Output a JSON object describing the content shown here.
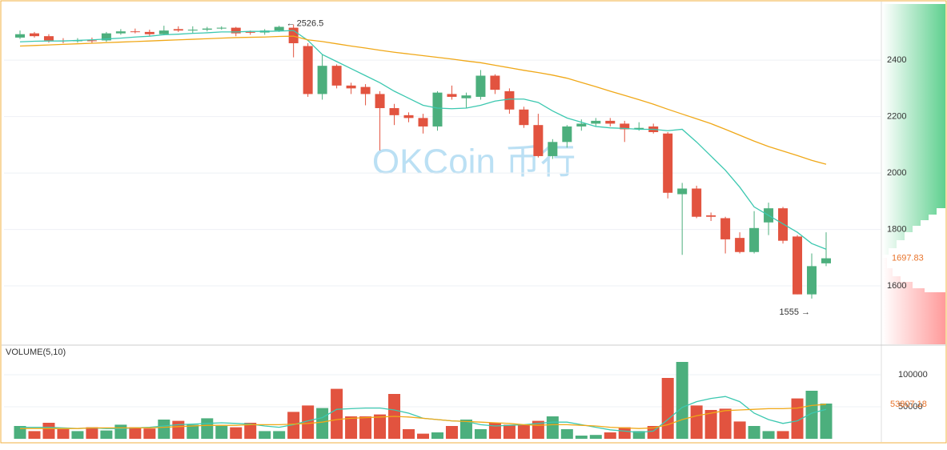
{
  "chart_data": [
    {
      "type": "candlestick",
      "watermark": "OKCoin 币行",
      "ylim": [
        1393,
        2599
      ],
      "yticks": [
        1600,
        1800,
        2000,
        2200,
        2400
      ],
      "grid": true,
      "up_color": "#4caf7d",
      "down_color": "#e2533f",
      "open": [
        2480,
        2495,
        2485,
        2470,
        2468,
        2470,
        2470,
        2495,
        2502,
        2500,
        2492,
        2510,
        2505,
        2508,
        2512,
        2515,
        2500,
        2498,
        2505,
        2515,
        2450,
        2280,
        2380,
        2310,
        2305,
        2280,
        2230,
        2205,
        2195,
        2165,
        2280,
        2265,
        2270,
        2345,
        2290,
        2225,
        2170,
        2060,
        2110,
        2165,
        2175,
        2185,
        2175,
        2155,
        2165,
        2140,
        1925,
        1945,
        1850,
        1840,
        1770,
        1720,
        1825,
        1875,
        1775,
        1570,
        1680
      ],
      "high": [
        2505,
        2500,
        2492,
        2478,
        2478,
        2480,
        2500,
        2510,
        2512,
        2508,
        2522,
        2520,
        2520,
        2518,
        2520,
        2518,
        2505,
        2510,
        2522,
        2526.5,
        2460,
        2420,
        2385,
        2320,
        2315,
        2290,
        2245,
        2215,
        2210,
        2290,
        2310,
        2285,
        2365,
        2350,
        2300,
        2235,
        2210,
        2120,
        2170,
        2190,
        2195,
        2195,
        2185,
        2180,
        2175,
        2145,
        1965,
        1955,
        1860,
        1845,
        1790,
        1865,
        1895,
        1880,
        1780,
        1715,
        1790
      ],
      "low": [
        2475,
        2480,
        2462,
        2460,
        2462,
        2460,
        2465,
        2490,
        2495,
        2485,
        2488,
        2500,
        2495,
        2502,
        2508,
        2485,
        2490,
        2490,
        2500,
        2410,
        2270,
        2260,
        2300,
        2280,
        2240,
        2080,
        2170,
        2180,
        2140,
        2150,
        2260,
        2230,
        2260,
        2280,
        2210,
        2160,
        2055,
        2050,
        2090,
        2150,
        2165,
        2165,
        2110,
        2150,
        2140,
        1910,
        1710,
        1840,
        1830,
        1715,
        1715,
        1715,
        1780,
        1750,
        1570,
        1555,
        1670
      ],
      "close": [
        2492,
        2485,
        2470,
        2468,
        2470,
        2468,
        2495,
        2502,
        2500,
        2492,
        2505,
        2505,
        2508,
        2512,
        2515,
        2495,
        2498,
        2505,
        2518,
        2460,
        2280,
        2380,
        2310,
        2300,
        2280,
        2230,
        2205,
        2195,
        2165,
        2285,
        2270,
        2275,
        2345,
        2295,
        2225,
        2170,
        2060,
        2110,
        2165,
        2175,
        2185,
        2175,
        2155,
        2160,
        2145,
        1930,
        1945,
        1845,
        1845,
        1765,
        1720,
        1805,
        1875,
        1760,
        1570,
        1670,
        1697.83
      ],
      "lines": [
        {
          "color": "#3cc8b0",
          "values": [
            2465,
            2467,
            2468,
            2468,
            2470,
            2472,
            2475,
            2478,
            2482,
            2485,
            2490,
            2492,
            2495,
            2497,
            2500,
            2500,
            2502,
            2502,
            2503,
            2505,
            2470,
            2420,
            2395,
            2370,
            2345,
            2320,
            2290,
            2265,
            2240,
            2230,
            2228,
            2230,
            2240,
            2255,
            2262,
            2262,
            2250,
            2220,
            2195,
            2180,
            2165,
            2160,
            2158,
            2155,
            2155,
            2150,
            2155,
            2110,
            2060,
            2010,
            1950,
            1880,
            1850,
            1820,
            1790,
            1750,
            1730
          ]
        },
        {
          "color": "#f0a818",
          "values": [
            2450,
            2452,
            2454,
            2456,
            2458,
            2460,
            2462,
            2464,
            2466,
            2468,
            2470,
            2472,
            2474,
            2476,
            2478,
            2480,
            2481,
            2482,
            2484,
            2485,
            2472,
            2466,
            2458,
            2450,
            2443,
            2435,
            2428,
            2422,
            2416,
            2410,
            2404,
            2397,
            2391,
            2382,
            2373,
            2364,
            2356,
            2347,
            2336,
            2321,
            2306,
            2290,
            2275,
            2260,
            2244,
            2226,
            2209,
            2192,
            2175,
            2155,
            2134,
            2113,
            2094,
            2078,
            2062,
            2045,
            2031
          ]
        }
      ]
    },
    {
      "type": "volume",
      "title": "VOLUME(5,10)",
      "ylim": [
        0,
        145000
      ],
      "yticks": [
        50000,
        100000
      ],
      "values": [
        20000,
        12000,
        25000,
        15000,
        12000,
        18000,
        13000,
        22000,
        18000,
        16000,
        30000,
        28000,
        22000,
        32000,
        20000,
        18000,
        25000,
        12000,
        12000,
        42000,
        52000,
        48000,
        78000,
        35000,
        35000,
        38000,
        70000,
        15000,
        8000,
        10000,
        20000,
        30000,
        15000,
        25000,
        22000,
        22000,
        28000,
        35000,
        15000,
        5000,
        6000,
        10000,
        18000,
        12000,
        20000,
        95000,
        120000,
        52000,
        45000,
        47000,
        27000,
        20000,
        12000,
        12000,
        63000,
        75000,
        55000
      ],
      "lines": [
        {
          "color": "#3cc8b0",
          "values": [
            18000,
            18000,
            18000,
            17000,
            16000,
            17000,
            16000,
            16000,
            17000,
            18000,
            20000,
            22000,
            23000,
            24000,
            25000,
            24000,
            23000,
            20000,
            18000,
            22000,
            28000,
            33000,
            46000,
            47000,
            48000,
            48000,
            45000,
            40000,
            32000,
            30000,
            28000,
            27000,
            22000,
            20000,
            21000,
            22000,
            24000,
            26000,
            26000,
            22000,
            18000,
            14000,
            12000,
            10000,
            12000,
            30000,
            49000,
            58000,
            63000,
            66000,
            58000,
            40000,
            30000,
            24000,
            28000,
            40000,
            46000
          ]
        },
        {
          "color": "#f0a818",
          "values": [
            16000,
            16000,
            16000,
            16000,
            16000,
            17000,
            17000,
            17000,
            17000,
            17000,
            18000,
            19000,
            20000,
            21000,
            21000,
            21000,
            22000,
            22000,
            22000,
            23000,
            24000,
            26000,
            30000,
            32000,
            33000,
            34000,
            35000,
            34000,
            32000,
            30000,
            28000,
            27000,
            26000,
            25000,
            24000,
            22000,
            21000,
            22000,
            22000,
            21000,
            20000,
            18000,
            17000,
            16000,
            17000,
            22000,
            30000,
            36000,
            40000,
            44000,
            45000,
            46000,
            47000,
            47000,
            48000,
            52000,
            53807.18
          ]
        }
      ]
    }
  ]
}
